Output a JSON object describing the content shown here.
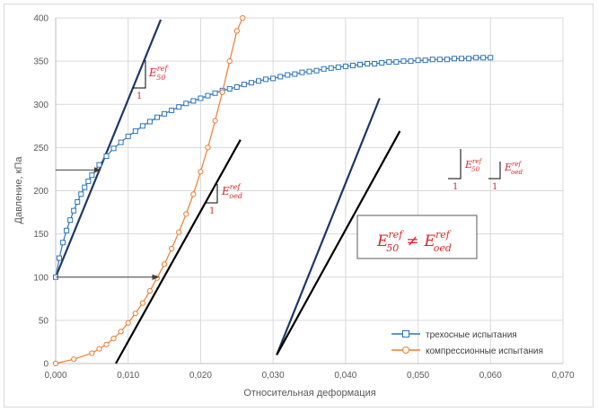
{
  "chart_data": {
    "type": "scatter",
    "xlabel": "Относительная деформация",
    "ylabel": "Давление, кПа",
    "xlim": [
      0,
      0.07
    ],
    "ylim": [
      0,
      400
    ],
    "x_ticks": [
      "0,000",
      "0,010",
      "0,020",
      "0,030",
      "0,040",
      "0,050",
      "0,060",
      "0,070"
    ],
    "y_ticks": [
      "0",
      "50",
      "100",
      "150",
      "200",
      "250",
      "300",
      "350",
      "400"
    ],
    "grid": "both",
    "legend_position": "bottom-right",
    "series": [
      {
        "name": "трехосные испытания",
        "color": "#2e75b6",
        "marker": "square",
        "x": [
          0.0,
          0.0005,
          0.001,
          0.0015,
          0.002,
          0.0025,
          0.003,
          0.0035,
          0.004,
          0.0045,
          0.005,
          0.006,
          0.007,
          0.008,
          0.009,
          0.01,
          0.011,
          0.012,
          0.013,
          0.014,
          0.015,
          0.016,
          0.017,
          0.018,
          0.019,
          0.02,
          0.021,
          0.022,
          0.023,
          0.024,
          0.025,
          0.026,
          0.027,
          0.028,
          0.029,
          0.03,
          0.031,
          0.032,
          0.033,
          0.034,
          0.035,
          0.036,
          0.037,
          0.038,
          0.039,
          0.04,
          0.041,
          0.042,
          0.043,
          0.044,
          0.045,
          0.046,
          0.047,
          0.048,
          0.049,
          0.05,
          0.051,
          0.052,
          0.053,
          0.054,
          0.055,
          0.056,
          0.057,
          0.058,
          0.059,
          0.06
        ],
        "y": [
          100,
          122,
          140,
          154,
          166,
          177,
          187,
          196,
          204,
          211,
          218,
          230,
          240,
          249,
          256,
          263,
          269,
          275,
          280,
          285,
          289,
          293,
          297,
          301,
          304,
          307,
          310,
          313,
          316,
          318,
          320,
          323,
          325,
          327,
          329,
          330,
          332,
          334,
          335,
          337,
          338,
          339,
          341,
          342,
          343,
          344,
          345,
          346,
          347,
          347,
          348,
          349,
          349,
          350,
          350,
          351,
          351,
          352,
          352,
          352,
          353,
          353,
          353,
          354,
          354,
          354
        ]
      },
      {
        "name": "компрессионные испытания",
        "color": "#ed7d31",
        "marker": "circle",
        "x": [
          0.0,
          0.0025,
          0.005,
          0.006,
          0.007,
          0.008,
          0.009,
          0.01,
          0.011,
          0.012,
          0.013,
          0.014,
          0.015,
          0.016,
          0.017,
          0.018,
          0.019,
          0.02,
          0.021,
          0.022,
          0.023,
          0.024,
          0.025,
          0.0258
        ],
        "y": [
          0,
          5,
          12,
          17,
          22,
          29,
          37,
          47,
          58,
          70,
          84,
          99,
          115,
          133,
          152,
          173,
          196,
          222,
          250,
          281,
          314,
          350,
          385,
          400
        ]
      }
    ],
    "lines": [
      {
        "color": "#1f3864",
        "x": [
          0.0,
          0.0145
        ],
        "y": [
          100,
          398
        ]
      },
      {
        "color": "#000000",
        "x": [
          0.0083,
          0.0255
        ],
        "y": [
          0,
          259
        ]
      },
      {
        "color": "#1f3864",
        "x": [
          0.0305,
          0.0447
        ],
        "y": [
          10,
          307
        ]
      },
      {
        "color": "#000000",
        "x": [
          0.0305,
          0.0475
        ],
        "y": [
          10,
          269
        ]
      }
    ],
    "arrows": [
      {
        "x": [
          0.0,
          0.0062
        ],
        "y": [
          224,
          224
        ]
      },
      {
        "x": [
          0.0,
          0.0142
        ],
        "y": [
          100,
          100
        ]
      }
    ],
    "legend": [
      "трехосные испытания",
      "компрессионные испытания"
    ],
    "annotations": {
      "e50": {
        "base": "E",
        "sub": "50",
        "sup": "ref"
      },
      "eoed": {
        "base": "E",
        "sub": "oed",
        "sup": "ref"
      },
      "one": "1",
      "neq": "≠"
    }
  }
}
